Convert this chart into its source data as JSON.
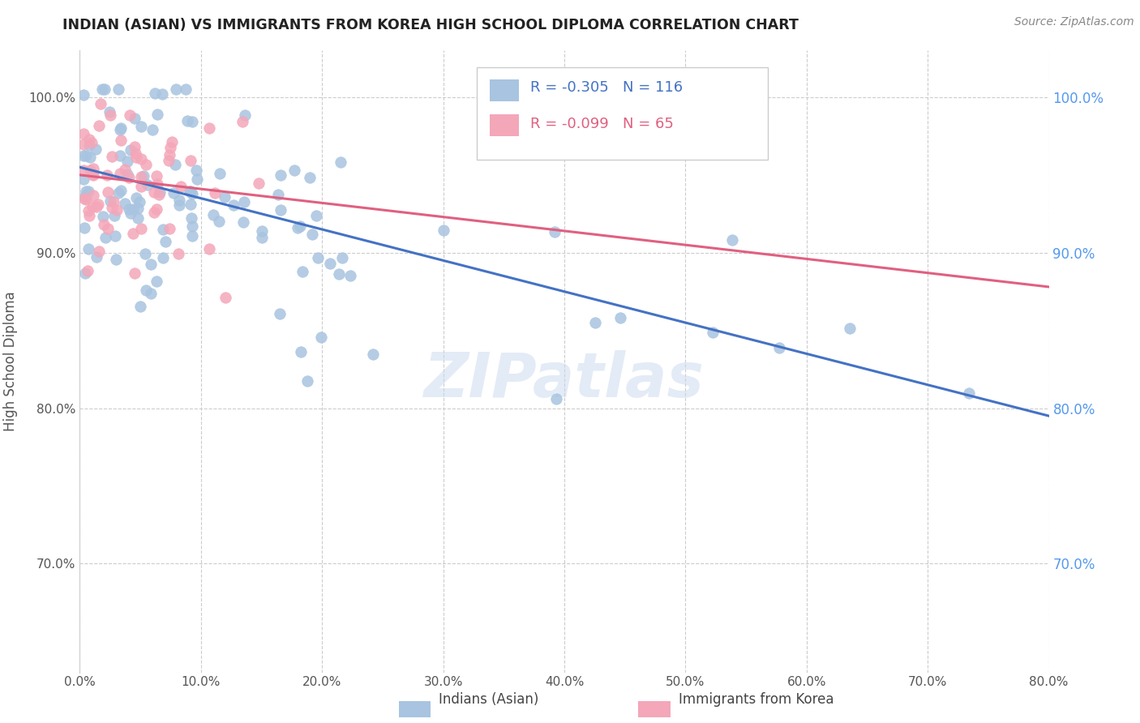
{
  "title": "INDIAN (ASIAN) VS IMMIGRANTS FROM KOREA HIGH SCHOOL DIPLOMA CORRELATION CHART",
  "source_text": "Source: ZipAtlas.com",
  "ylabel": "High School Diploma",
  "xlim": [
    0.0,
    0.8
  ],
  "ylim": [
    0.63,
    1.03
  ],
  "ytick_values": [
    0.7,
    0.8,
    0.9,
    1.0
  ],
  "xtick_values": [
    0.0,
    0.1,
    0.2,
    0.3,
    0.4,
    0.5,
    0.6,
    0.7,
    0.8
  ],
  "legend_label1": "Indians (Asian)",
  "legend_label2": "Immigrants from Korea",
  "R1": -0.305,
  "N1": 116,
  "R2": -0.099,
  "N2": 65,
  "color1": "#a8c4e0",
  "color2": "#f4a7b9",
  "line_color1": "#4472c4",
  "line_color2": "#e06080",
  "background_color": "#ffffff",
  "grid_color": "#cccccc",
  "line1_x0": 0.0,
  "line1_y0": 0.955,
  "line1_x1": 0.8,
  "line1_y1": 0.795,
  "line2_x0": 0.0,
  "line2_y0": 0.95,
  "line2_x1": 0.8,
  "line2_y1": 0.878
}
